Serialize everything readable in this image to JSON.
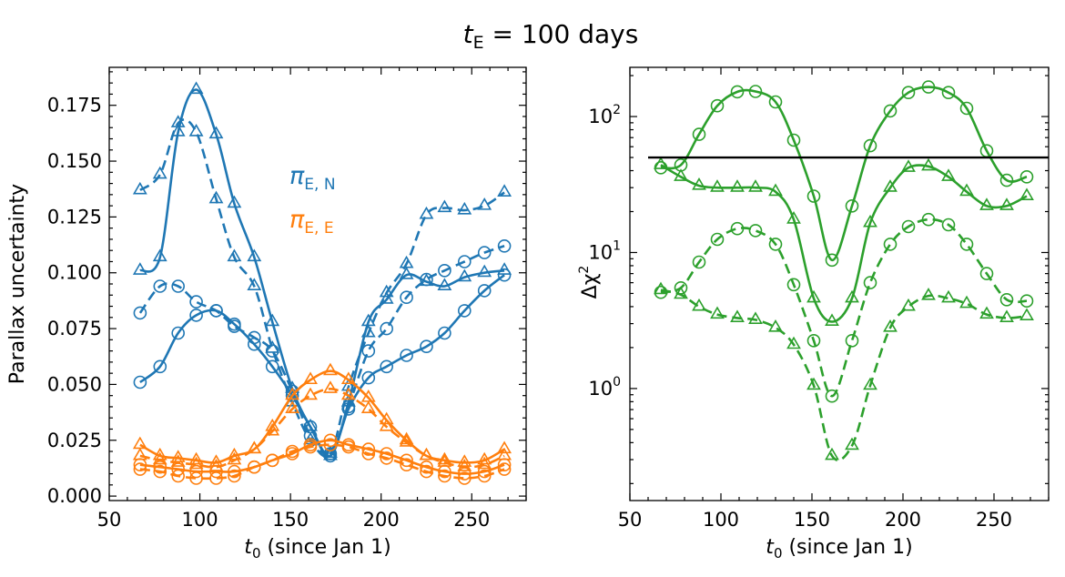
{
  "figure_title": {
    "italic": "t",
    "sub": "E",
    "rest": " = 100 days"
  },
  "colors": {
    "pi_E_N": "#1f77b4",
    "pi_E_E": "#ff7f0e",
    "delta_chi2": "#2ca02c",
    "threshold": "#000000"
  },
  "chart_data": [
    {
      "type": "line",
      "title": "",
      "xlabel": {
        "italic": "t",
        "sub": "0",
        "rest": " (since Jan 1)"
      },
      "ylabel": "Parallax uncertainty",
      "xlim": [
        50,
        280
      ],
      "ylim": [
        -0.002,
        0.192
      ],
      "xticks": [
        50,
        100,
        150,
        200,
        250
      ],
      "yticks": [
        0.0,
        0.025,
        0.05,
        0.075,
        0.1,
        0.125,
        0.15,
        0.175
      ],
      "ytick_labels": [
        "0.000",
        "0.025",
        "0.050",
        "0.075",
        "0.100",
        "0.125",
        "0.150",
        "0.175"
      ],
      "legend": [
        {
          "main": "π",
          "sub": "E, N",
          "color": "#1f77b4"
        },
        {
          "main": "π",
          "sub": "E, E",
          "color": "#ff7f0e"
        }
      ],
      "x": [
        67,
        78,
        88,
        98,
        109,
        119,
        130,
        140,
        151,
        161,
        172,
        182,
        193,
        203,
        214,
        225,
        235,
        246,
        257,
        268
      ],
      "series": [
        {
          "name": "pi_E_N triangle solid",
          "color": "#1f77b4",
          "dash": false,
          "marker": "triangle",
          "values": [
            0.101,
            0.107,
            0.163,
            0.182,
            0.162,
            0.131,
            0.107,
            0.078,
            0.048,
            0.031,
            0.018,
            0.042,
            0.078,
            0.088,
            0.099,
            0.096,
            0.094,
            0.098,
            0.1,
            0.101
          ]
        },
        {
          "name": "pi_E_N triangle dashed",
          "color": "#1f77b4",
          "dash": true,
          "marker": "triangle",
          "values": [
            0.137,
            0.144,
            0.167,
            0.163,
            0.133,
            0.107,
            0.094,
            0.066,
            0.042,
            0.025,
            0.019,
            0.049,
            0.073,
            0.091,
            0.104,
            0.126,
            0.129,
            0.128,
            0.13,
            0.136
          ]
        },
        {
          "name": "pi_E_N circle dashed",
          "color": "#1f77b4",
          "dash": true,
          "marker": "circle",
          "values": [
            0.082,
            0.094,
            0.094,
            0.087,
            0.083,
            0.076,
            0.071,
            0.065,
            0.047,
            0.027,
            0.019,
            0.04,
            0.065,
            0.075,
            0.089,
            0.097,
            0.101,
            0.105,
            0.109,
            0.112
          ]
        },
        {
          "name": "pi_E_N circle solid",
          "color": "#1f77b4",
          "dash": false,
          "marker": "circle",
          "values": [
            0.051,
            0.058,
            0.073,
            0.081,
            0.083,
            0.077,
            0.068,
            0.058,
            0.045,
            0.031,
            0.018,
            0.039,
            0.053,
            0.058,
            0.063,
            0.067,
            0.073,
            0.083,
            0.092,
            0.099
          ]
        },
        {
          "name": "pi_E_E triangle solid",
          "color": "#ff7f0e",
          "dash": false,
          "marker": "triangle",
          "values": [
            0.023,
            0.018,
            0.017,
            0.016,
            0.015,
            0.018,
            0.021,
            0.031,
            0.045,
            0.052,
            0.056,
            0.052,
            0.044,
            0.034,
            0.025,
            0.018,
            0.016,
            0.015,
            0.016,
            0.021
          ]
        },
        {
          "name": "pi_E_E triangle dashed",
          "color": "#ff7f0e",
          "dash": true,
          "marker": "triangle",
          "values": [
            0.018,
            0.016,
            0.015,
            0.014,
            0.013,
            0.016,
            0.021,
            0.029,
            0.039,
            0.045,
            0.048,
            0.045,
            0.039,
            0.031,
            0.024,
            0.018,
            0.015,
            0.013,
            0.014,
            0.018
          ]
        },
        {
          "name": "pi_E_E circle solid",
          "color": "#ff7f0e",
          "dash": false,
          "marker": "circle",
          "values": [
            0.014,
            0.013,
            0.012,
            0.011,
            0.011,
            0.011,
            0.013,
            0.016,
            0.019,
            0.023,
            0.025,
            0.023,
            0.021,
            0.019,
            0.016,
            0.013,
            0.011,
            0.01,
            0.011,
            0.014
          ]
        },
        {
          "name": "pi_E_E circle dashed",
          "color": "#ff7f0e",
          "dash": true,
          "marker": "circle",
          "values": [
            0.012,
            0.011,
            0.009,
            0.008,
            0.008,
            0.009,
            0.013,
            0.016,
            0.02,
            0.022,
            0.023,
            0.022,
            0.019,
            0.017,
            0.014,
            0.011,
            0.009,
            0.008,
            0.009,
            0.012
          ]
        }
      ]
    },
    {
      "type": "line",
      "title": "",
      "xlabel": {
        "italic": "t",
        "sub": "0",
        "rest": " (since Jan 1)"
      },
      "ylabel": {
        "main": "Δχ",
        "sup": "2"
      },
      "yscale": "log",
      "xlim": [
        50,
        280
      ],
      "ylim": [
        0.15,
        230
      ],
      "xticks": [
        50,
        100,
        150,
        200,
        250
      ],
      "yticks": [
        1,
        10,
        100
      ],
      "ytick_labels": [
        {
          "base": "10",
          "exp": "0"
        },
        {
          "base": "10",
          "exp": "1"
        },
        {
          "base": "10",
          "exp": "2"
        }
      ],
      "threshold": 50,
      "x": [
        67,
        78,
        88,
        98,
        109,
        119,
        130,
        140,
        151,
        161,
        172,
        182,
        193,
        203,
        214,
        225,
        235,
        246,
        257,
        268
      ],
      "series": [
        {
          "name": "circle solid",
          "color": "#2ca02c",
          "dash": false,
          "marker": "circle",
          "values": [
            42,
            44,
            74,
            120,
            152,
            153,
            128,
            67,
            26,
            8.8,
            22,
            61,
            110,
            150,
            165,
            150,
            115,
            56,
            34,
            36
          ]
        },
        {
          "name": "triangle solid",
          "color": "#2ca02c",
          "dash": false,
          "marker": "triangle",
          "values": [
            44,
            36,
            31,
            30,
            30,
            30,
            28,
            17.5,
            4.6,
            3.1,
            4.6,
            16.5,
            30,
            42,
            43,
            36,
            28,
            22,
            22,
            26
          ]
        },
        {
          "name": "circle dashed",
          "color": "#2ca02c",
          "dash": true,
          "marker": "circle",
          "values": [
            5.1,
            5.5,
            8.5,
            12.5,
            15,
            14.5,
            11.5,
            5.8,
            2.25,
            0.88,
            2.25,
            6.0,
            11.5,
            15.5,
            17.5,
            16,
            11.5,
            7.0,
            4.5,
            4.4
          ]
        },
        {
          "name": "triangle dashed",
          "color": "#2ca02c",
          "dash": true,
          "marker": "triangle",
          "values": [
            5.3,
            4.9,
            4.0,
            3.5,
            3.3,
            3.2,
            2.8,
            2.1,
            1.05,
            0.32,
            0.38,
            1.05,
            2.8,
            4.0,
            4.8,
            4.6,
            4.2,
            3.5,
            3.3,
            3.4
          ]
        }
      ]
    }
  ]
}
